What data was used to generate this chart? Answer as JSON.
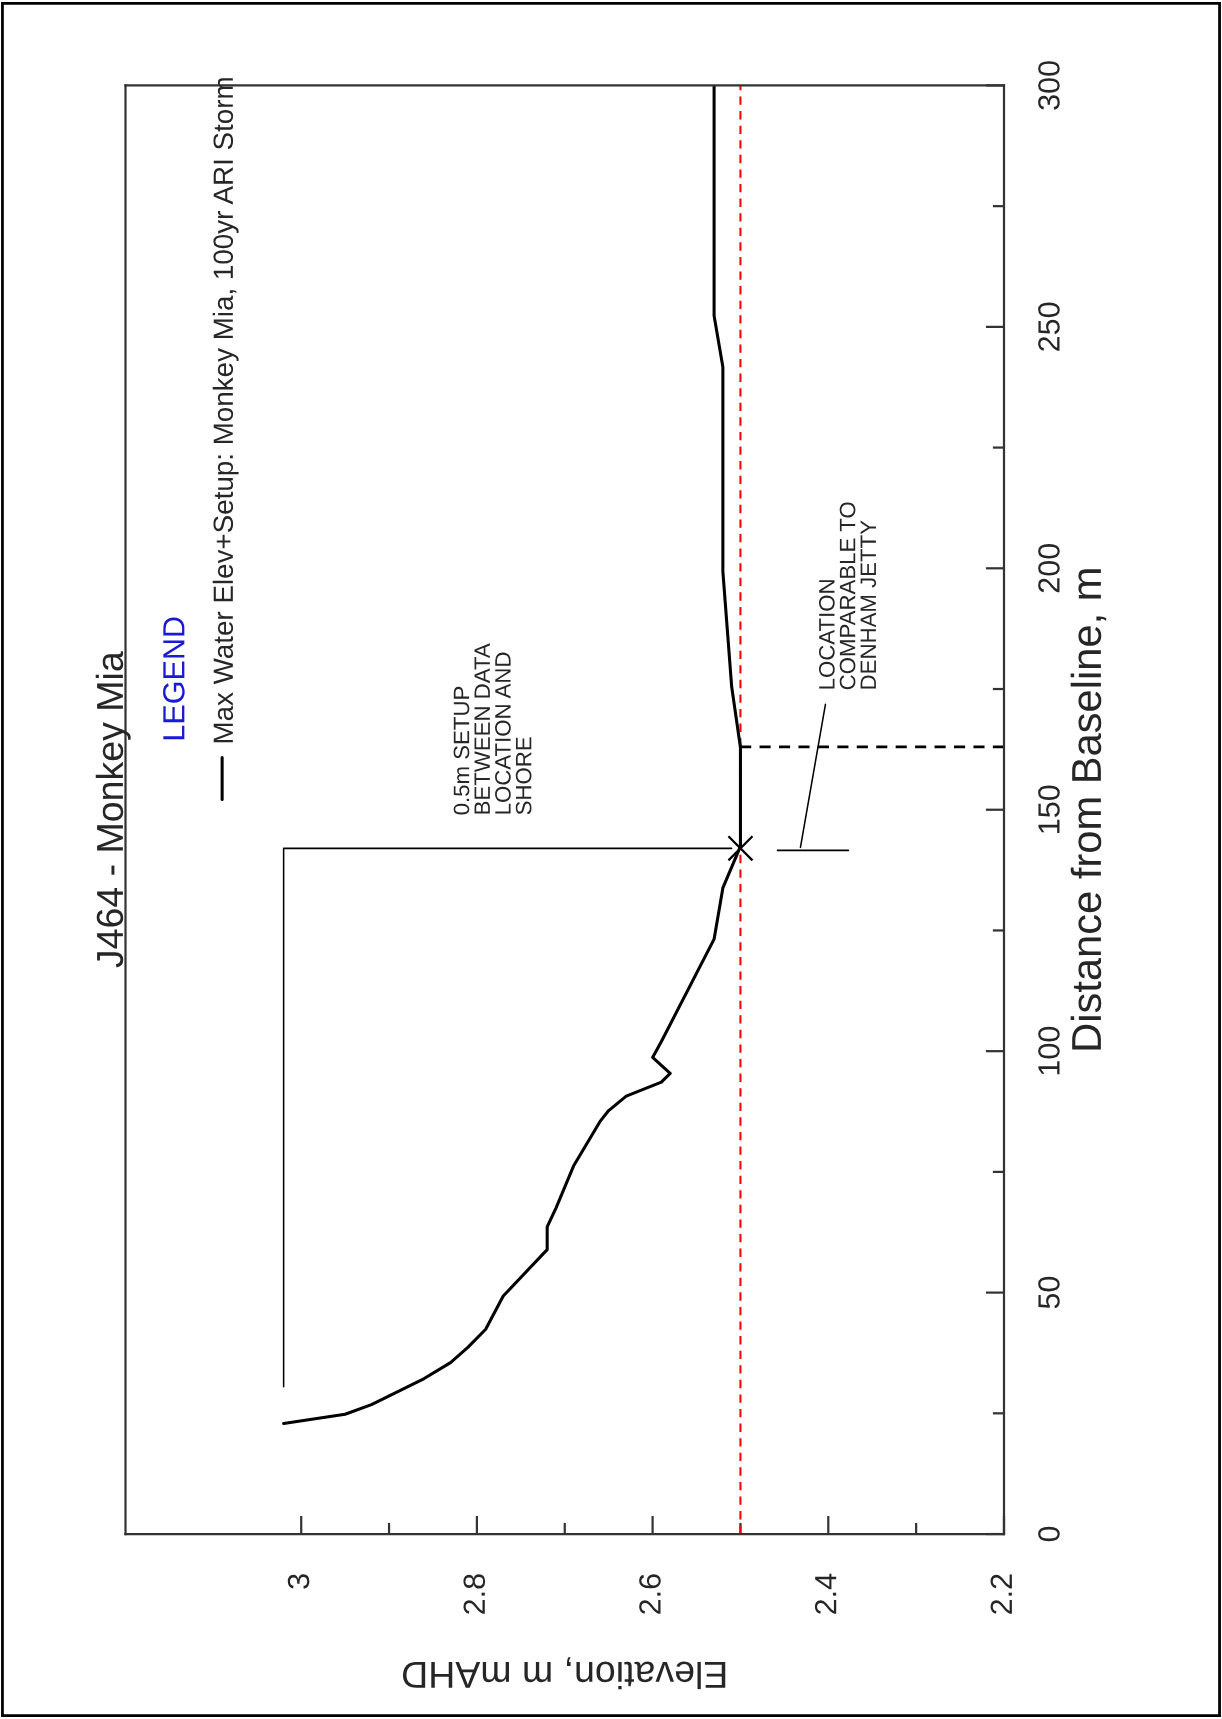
{
  "chart_data": {
    "type": "line",
    "title": "J464 - Monkey Mia",
    "xlabel": "Elevation, m mAHD",
    "ylabel": "Distance from Baseline, m",
    "legend_title": "LEGEND",
    "legend": "top left",
    "grid": false,
    "ylim": [
      0,
      300
    ],
    "yticks": [
      0,
      {
        "value": 25,
        "label": null
      },
      50,
      {
        "value": 75,
        "label": null
      },
      100,
      {
        "value": 125,
        "label": null
      },
      150,
      {
        "value": 175,
        "label": null
      },
      200,
      {
        "value": 225,
        "label": null
      },
      250,
      {
        "value": 275,
        "label": null
      },
      300
    ],
    "xlim": [
      3.2,
      2.2
    ],
    "xticks": [
      3,
      {
        "value": 2.9,
        "label": null
      },
      2.8,
      {
        "value": 2.7,
        "label": null
      },
      2.6,
      {
        "value": 2.5,
        "label": null
      },
      2.4,
      {
        "value": 2.3,
        "label": null
      },
      2.2
    ],
    "series": [
      {
        "name": "Max Water Elev+Setup: Monkey Mia, 100yr ARI Storm",
        "color": "#000000",
        "line_style": "solid",
        "x": [
          3.02,
          2.95,
          2.92,
          2.89,
          2.86,
          2.83,
          2.81,
          2.79,
          2.77,
          2.72,
          2.72,
          2.71,
          2.69,
          2.66,
          2.65,
          2.63,
          2.59,
          2.58,
          2.6,
          2.59,
          2.53,
          2.52,
          2.5,
          2.5,
          2.5,
          2.51,
          2.52,
          2.52,
          2.52,
          2.53,
          2.53
        ],
        "values": [
          22.9,
          24.8,
          26.8,
          29.5,
          32.2,
          35.5,
          38.7,
          42.4,
          49.3,
          58.9,
          63.6,
          67.5,
          76.2,
          85.4,
          87.7,
          90.7,
          93.6,
          95.4,
          98.7,
          102.0,
          123.2,
          133.8,
          142.4,
          153.0,
          162.9,
          175.5,
          199.3,
          220.5,
          241.7,
          252.3,
          300
        ]
      },
      {
        "type": "scatter",
        "color": "#000000",
        "marker": "cross",
        "x": [
          2.5
        ],
        "values": [
          142
        ]
      },
      {
        "type": "line",
        "color": "#000000",
        "line_style": "dashed",
        "x": [
          2.2,
          2.5
        ],
        "values": [
          163,
          163
        ]
      },
      {
        "type": "line",
        "color": "#000000",
        "line_style": "solid",
        "x": [
          3.02,
          3.02,
          2.51
        ],
        "values": [
          30.5,
          142,
          142
        ]
      }
    ],
    "ref_lines": [
      {
        "axis": "x",
        "value": 2.5,
        "color": "#ff0000",
        "line_style": "dashed"
      }
    ],
    "annotations": [
      "0.5m SETUP\nBETWEEN DATA\nLOCATION AND\nSHORE",
      "LOCATION\nCOMPARABLE TO\nDENHAM JETTY"
    ]
  }
}
